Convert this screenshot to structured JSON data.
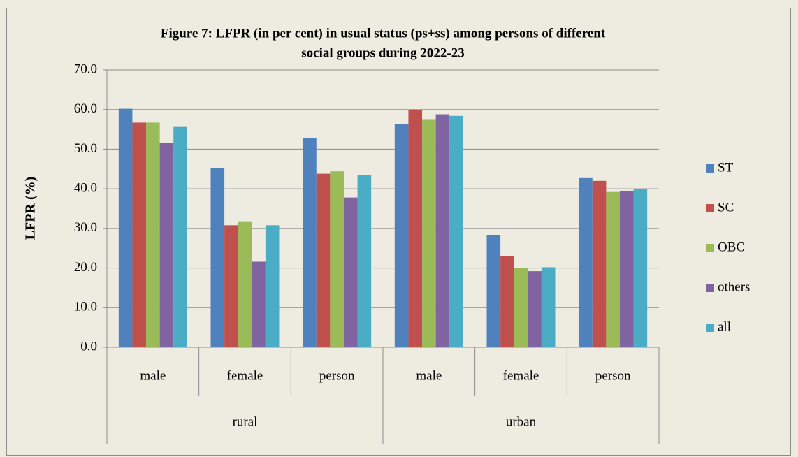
{
  "chart_data": {
    "type": "bar",
    "title": [
      "Figure 7: LFPR (in per cent) in usual status (ps+ss)  among persons of different",
      "social groups during 2022-23"
    ],
    "y_label": "LFPR (%)",
    "categories": [
      "male",
      "female",
      "person",
      "male",
      "female",
      "person"
    ],
    "category_groups": [
      "rural",
      "urban"
    ],
    "series": [
      {
        "name": "ST",
        "color": "#4f81bd",
        "values": [
          60.2,
          45.2,
          52.9,
          56.4,
          28.3,
          42.7
        ]
      },
      {
        "name": "SC",
        "color": "#c0504d",
        "values": [
          56.7,
          30.8,
          43.8,
          59.9,
          23.0,
          42.0
        ]
      },
      {
        "name": "OBC",
        "color": "#9bbb59",
        "values": [
          56.7,
          31.8,
          44.4,
          57.4,
          20.0,
          39.2
        ]
      },
      {
        "name": "others",
        "color": "#8064a2",
        "values": [
          51.5,
          21.6,
          37.8,
          58.8,
          19.2,
          39.5
        ]
      },
      {
        "name": "all",
        "color": "#4bacc6",
        "values": [
          55.6,
          30.8,
          43.4,
          58.4,
          20.2,
          40.0
        ]
      }
    ],
    "ylim": [
      0,
      70
    ],
    "yticks": [
      {
        "value": 0,
        "label": "0.0"
      },
      {
        "value": 10,
        "label": "10.0"
      },
      {
        "value": 20,
        "label": "20.0"
      },
      {
        "value": 30,
        "label": "30.0"
      },
      {
        "value": 40,
        "label": "40.0"
      },
      {
        "value": 50,
        "label": "50.0"
      },
      {
        "value": 60,
        "label": "60.0"
      },
      {
        "value": 70,
        "label": "70.0"
      }
    ],
    "grid": true,
    "legend": "right"
  }
}
